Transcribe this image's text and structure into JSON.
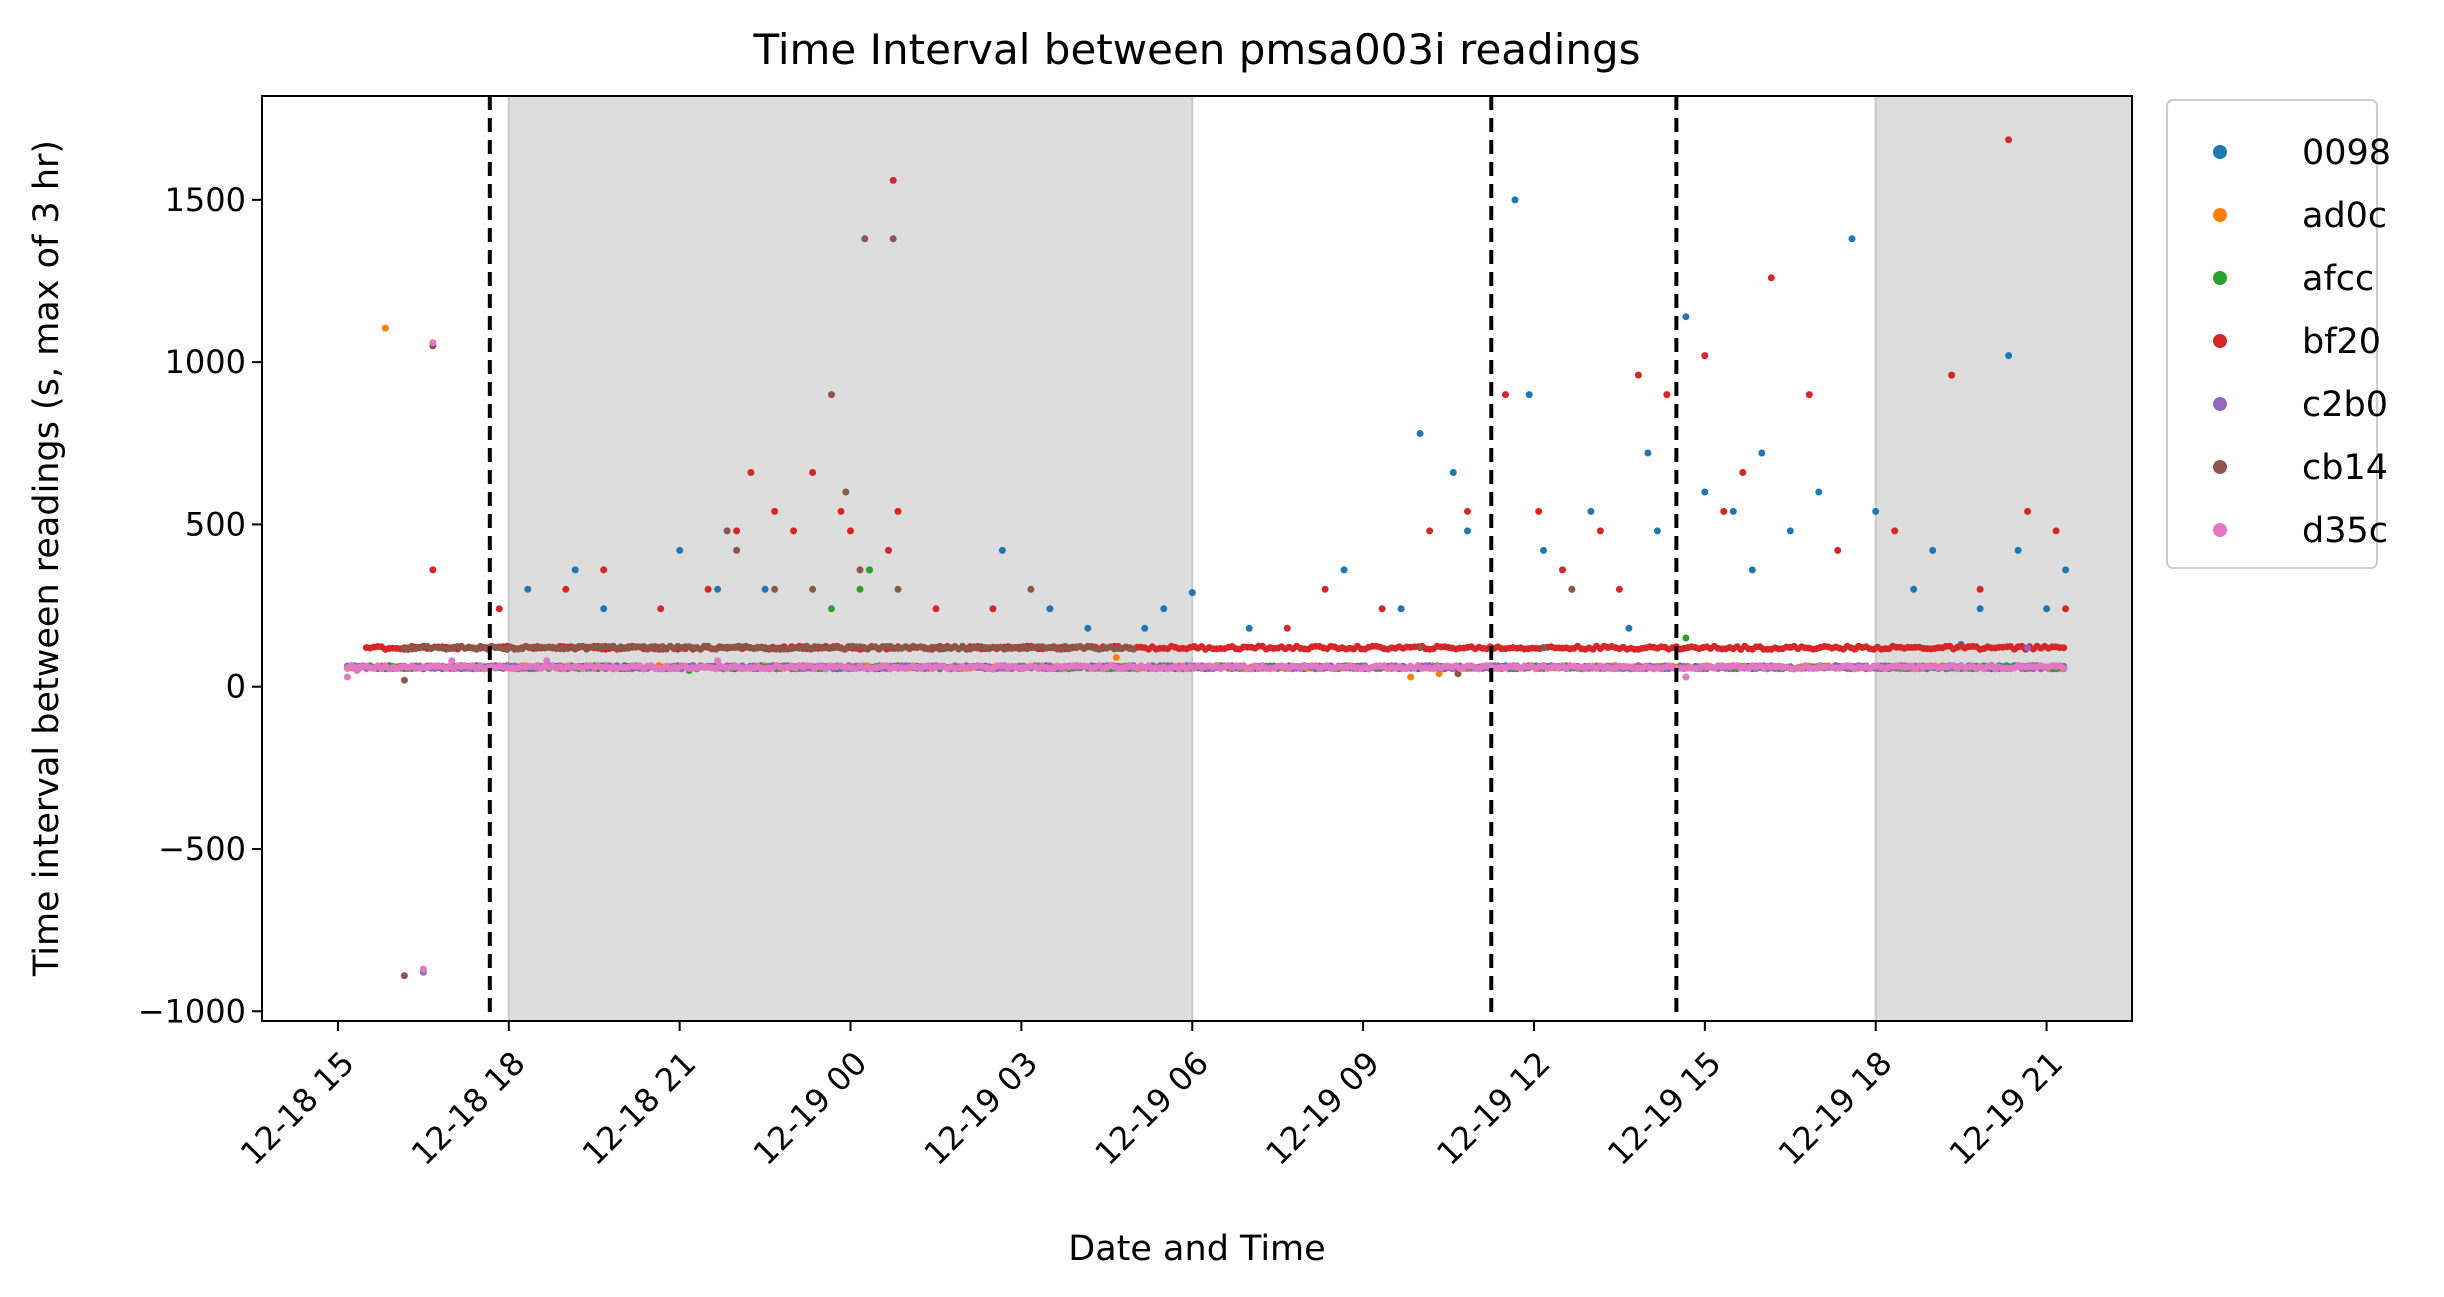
{
  "chart_data": {
    "type": "scatter",
    "title": "Time Interval between pmsa003i readings",
    "xlabel": "Date and Time",
    "ylabel": "Time interval between readings (s, max of 3 hr)",
    "xlim": [
      "2025-12-18 13:40",
      "2025-12-19 22:30"
    ],
    "ylim": [
      -1030,
      1820
    ],
    "x_ticks": [
      {
        "value": "2025-12-18 15:00",
        "label": "12-18 15"
      },
      {
        "value": "2025-12-18 18:00",
        "label": "12-18 18"
      },
      {
        "value": "2025-12-18 21:00",
        "label": "12-18 21"
      },
      {
        "value": "2025-12-19 00:00",
        "label": "12-19 00"
      },
      {
        "value": "2025-12-19 03:00",
        "label": "12-19 03"
      },
      {
        "value": "2025-12-19 06:00",
        "label": "12-19 06"
      },
      {
        "value": "2025-12-19 09:00",
        "label": "12-19 09"
      },
      {
        "value": "2025-12-19 12:00",
        "label": "12-19 12"
      },
      {
        "value": "2025-12-19 15:00",
        "label": "12-19 15"
      },
      {
        "value": "2025-12-19 18:00",
        "label": "12-19 18"
      },
      {
        "value": "2025-12-19 21:00",
        "label": "12-19 21"
      }
    ],
    "y_ticks": [
      {
        "value": 1500,
        "label": "1500"
      },
      {
        "value": 1000,
        "label": "1000"
      },
      {
        "value": 500,
        "label": "500"
      },
      {
        "value": 0,
        "label": "0"
      },
      {
        "value": -500,
        "label": "−500"
      },
      {
        "value": -1000,
        "label": "−1000"
      }
    ],
    "shaded_regions": [
      {
        "start": "2025-12-18 18:00",
        "end": "2025-12-19 06:00",
        "color": "#dddddd"
      },
      {
        "start": "2025-12-19 18:00",
        "end": "2025-12-19 22:30",
        "color": "#dddddd"
      }
    ],
    "vertical_lines": [
      {
        "x": "2025-12-18 17:40",
        "style": "dashed",
        "color": "#000000"
      },
      {
        "x": "2025-12-19 11:15",
        "style": "dashed",
        "color": "#000000"
      },
      {
        "x": "2025-12-19 14:30",
        "style": "dashed",
        "color": "#000000"
      }
    ],
    "grid": false,
    "legend_position": "outside-top-right",
    "series": [
      {
        "name": "0098",
        "color": "#1f77b4",
        "baseline": {
          "start": "2025-12-18 15:10",
          "end": "2025-12-19 21:20",
          "value": 60
        },
        "points": [
          [
            "2025-12-18 18:20",
            300
          ],
          [
            "2025-12-18 19:10",
            360
          ],
          [
            "2025-12-18 21:00",
            420
          ],
          [
            "2025-12-18 21:40",
            300
          ],
          [
            "2025-12-19 00:20",
            360
          ],
          [
            "2025-12-19 02:40",
            420
          ],
          [
            "2025-12-19 03:30",
            240
          ],
          [
            "2025-12-19 05:30",
            240
          ],
          [
            "2025-12-19 06:00",
            290
          ],
          [
            "2025-12-19 08:40",
            360
          ],
          [
            "2025-12-19 10:00",
            780
          ],
          [
            "2025-12-19 10:35",
            660
          ],
          [
            "2025-12-19 10:50",
            480
          ],
          [
            "2025-12-19 11:40",
            1500
          ],
          [
            "2025-12-19 11:55",
            900
          ],
          [
            "2025-12-19 12:10",
            420
          ],
          [
            "2025-12-19 13:00",
            540
          ],
          [
            "2025-12-19 14:00",
            720
          ],
          [
            "2025-12-19 14:10",
            480
          ],
          [
            "2025-12-19 14:40",
            1140
          ],
          [
            "2025-12-19 15:00",
            600
          ],
          [
            "2025-12-19 15:30",
            540
          ],
          [
            "2025-12-19 16:00",
            720
          ],
          [
            "2025-12-19 16:30",
            480
          ],
          [
            "2025-12-19 17:00",
            600
          ],
          [
            "2025-12-19 17:35",
            1380
          ],
          [
            "2025-12-19 18:00",
            540
          ],
          [
            "2025-12-19 19:00",
            420
          ],
          [
            "2025-12-19 19:30",
            130
          ],
          [
            "2025-12-19 20:20",
            1020
          ],
          [
            "2025-12-19 20:30",
            420
          ],
          [
            "2025-12-19 21:20",
            360
          ],
          [
            "2025-12-18 19:40",
            240
          ],
          [
            "2025-12-18 22:30",
            300
          ],
          [
            "2025-12-19 04:10",
            180
          ],
          [
            "2025-12-19 05:10",
            180
          ],
          [
            "2025-12-19 07:00",
            180
          ],
          [
            "2025-12-19 09:40",
            240
          ],
          [
            "2025-12-19 12:40",
            300
          ],
          [
            "2025-12-19 13:40",
            180
          ],
          [
            "2025-12-19 15:50",
            360
          ],
          [
            "2025-12-19 18:40",
            300
          ],
          [
            "2025-12-19 19:50",
            240
          ],
          [
            "2025-12-19 21:00",
            240
          ]
        ]
      },
      {
        "name": "ad0c",
        "color": "#ff7f0e",
        "baseline": {
          "start": "2025-12-18 15:10",
          "end": "2025-12-19 21:20",
          "value": 60
        },
        "points": [
          [
            "2025-12-18 15:50",
            1105
          ],
          [
            "2025-12-19 04:40",
            90
          ],
          [
            "2025-12-19 09:50",
            30
          ],
          [
            "2025-12-19 10:20",
            40
          ],
          [
            "2025-12-19 17:40",
            120
          ],
          [
            "2025-12-19 05:50",
            55
          ]
        ]
      },
      {
        "name": "afcc",
        "color": "#2ca02c",
        "baseline": {
          "start": "2025-12-18 15:10",
          "end": "2025-12-19 21:20",
          "value": 60
        },
        "points": [
          [
            "2025-12-18 23:40",
            240
          ],
          [
            "2025-12-19 00:20",
            360
          ],
          [
            "2025-12-19 00:10",
            300
          ],
          [
            "2025-12-19 14:40",
            150
          ],
          [
            "2025-12-18 21:10",
            50
          ],
          [
            "2025-12-19 03:30",
            120
          ]
        ]
      },
      {
        "name": "bf20",
        "color": "#d62728",
        "baseline": {
          "start": "2025-12-18 15:30",
          "end": "2025-12-19 21:20",
          "value": 120
        },
        "points": [
          [
            "2025-12-18 16:40",
            360
          ],
          [
            "2025-12-18 17:50",
            240
          ],
          [
            "2025-12-18 19:40",
            360
          ],
          [
            "2025-12-18 22:00",
            480
          ],
          [
            "2025-12-18 22:40",
            540
          ],
          [
            "2025-12-18 23:00",
            480
          ],
          [
            "2025-12-18 23:20",
            660
          ],
          [
            "2025-12-18 23:50",
            540
          ],
          [
            "2025-12-19 00:00",
            480
          ],
          [
            "2025-12-19 00:40",
            420
          ],
          [
            "2025-12-19 00:45",
            1560
          ],
          [
            "2025-12-19 00:50",
            540
          ],
          [
            "2025-12-18 22:15",
            660
          ],
          [
            "2025-12-19 08:20",
            300
          ],
          [
            "2025-12-19 10:10",
            480
          ],
          [
            "2025-12-19 10:50",
            540
          ],
          [
            "2025-12-19 11:30",
            900
          ],
          [
            "2025-12-19 12:05",
            540
          ],
          [
            "2025-12-19 13:10",
            480
          ],
          [
            "2025-12-19 13:50",
            960
          ],
          [
            "2025-12-19 14:20",
            900
          ],
          [
            "2025-12-19 15:00",
            1020
          ],
          [
            "2025-12-19 15:40",
            660
          ],
          [
            "2025-12-19 16:10",
            1260
          ],
          [
            "2025-12-19 16:50",
            900
          ],
          [
            "2025-12-19 17:20",
            420
          ],
          [
            "2025-12-19 19:20",
            960
          ],
          [
            "2025-12-19 20:20",
            1685
          ],
          [
            "2025-12-19 20:40",
            540
          ],
          [
            "2025-12-19 21:10",
            480
          ],
          [
            "2025-12-19 21:20",
            240
          ],
          [
            "2025-12-18 19:00",
            300
          ],
          [
            "2025-12-18 20:40",
            240
          ],
          [
            "2025-12-18 21:30",
            300
          ],
          [
            "2025-12-19 01:30",
            240
          ],
          [
            "2025-12-19 02:30",
            240
          ],
          [
            "2025-12-19 07:40",
            180
          ],
          [
            "2025-12-19 09:20",
            240
          ],
          [
            "2025-12-19 12:30",
            360
          ],
          [
            "2025-12-19 13:30",
            300
          ],
          [
            "2025-12-19 15:20",
            540
          ],
          [
            "2025-12-19 18:20",
            480
          ],
          [
            "2025-12-19 19:50",
            300
          ]
        ]
      },
      {
        "name": "c2b0",
        "color": "#9467bd",
        "baseline": {
          "start": "2025-12-18 15:10",
          "end": "2025-12-19 21:20",
          "value": 60
        },
        "points": [
          [
            "2025-12-19 20:40",
            120
          ],
          [
            "2025-12-18 16:30",
            -880
          ]
        ]
      },
      {
        "name": "cb14",
        "color": "#8c564b",
        "baseline": {
          "start": "2025-12-18 16:10",
          "end": "2025-12-19 05:00",
          "value": 120
        },
        "points": [
          [
            "2025-12-18 16:10",
            20
          ],
          [
            "2025-12-18 16:10",
            -890
          ],
          [
            "2025-12-18 16:40",
            1050
          ],
          [
            "2025-12-18 21:50",
            480
          ],
          [
            "2025-12-18 22:00",
            420
          ],
          [
            "2025-12-18 22:40",
            300
          ],
          [
            "2025-12-18 23:20",
            300
          ],
          [
            "2025-12-18 23:40",
            900
          ],
          [
            "2025-12-18 23:55",
            600
          ],
          [
            "2025-12-19 00:10",
            360
          ],
          [
            "2025-12-19 00:15",
            1380
          ],
          [
            "2025-12-19 00:45",
            1380
          ],
          [
            "2025-12-19 00:50",
            300
          ],
          [
            "2025-12-19 03:10",
            300
          ],
          [
            "2025-12-19 10:00",
            120
          ],
          [
            "2025-12-19 10:40",
            40
          ],
          [
            "2025-12-19 12:10",
            120
          ],
          [
            "2025-12-19 12:40",
            300
          ]
        ]
      },
      {
        "name": "d35c",
        "color": "#e377c2",
        "baseline": {
          "start": "2025-12-18 15:10",
          "end": "2025-12-19 21:20",
          "value": 60
        },
        "points": [
          [
            "2025-12-18 15:10",
            30
          ],
          [
            "2025-12-18 15:20",
            50
          ],
          [
            "2025-12-18 16:40",
            1060
          ],
          [
            "2025-12-18 16:30",
            -870
          ],
          [
            "2025-12-18 17:00",
            80
          ],
          [
            "2025-12-18 18:40",
            80
          ],
          [
            "2025-12-18 21:40",
            80
          ],
          [
            "2025-12-19 14:40",
            30
          ]
        ]
      }
    ]
  }
}
